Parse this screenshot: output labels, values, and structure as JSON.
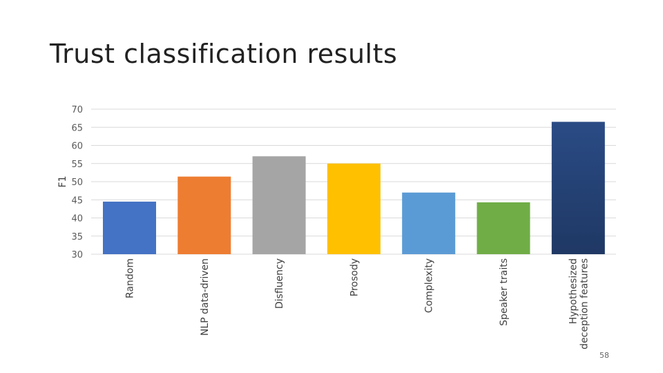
{
  "slide": {
    "title": "Trust classification results",
    "page_number": "58"
  },
  "chart_data": {
    "type": "bar",
    "ylabel": "F1",
    "xlabel": "",
    "ylim": [
      30,
      70
    ],
    "yticks": [
      70,
      65,
      60,
      55,
      50,
      45,
      40,
      35,
      30
    ],
    "grid": true,
    "categories": [
      [
        "Random"
      ],
      [
        "NLP data-driven"
      ],
      [
        "Disfluency"
      ],
      [
        "Prosody"
      ],
      [
        "Complexity"
      ],
      [
        "Speaker traits"
      ],
      [
        "Hypothesized",
        "deception features"
      ]
    ],
    "values": [
      44.5,
      51.4,
      57.0,
      55.0,
      47.0,
      44.3,
      66.5
    ],
    "colors": [
      "#4472C4",
      "#ED7D31",
      "#A5A5A5",
      "#FFC000",
      "#5B9BD5",
      "#70AD47",
      "#264478"
    ]
  }
}
